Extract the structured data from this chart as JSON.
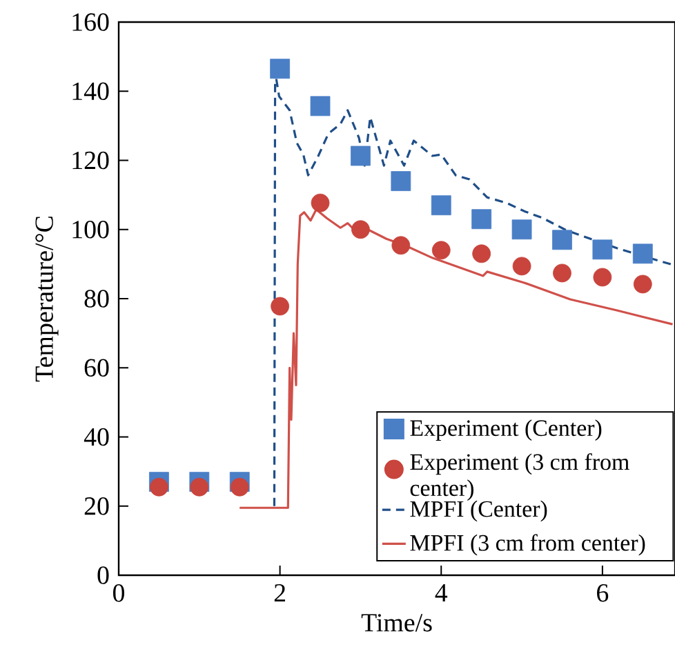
{
  "chart_data": {
    "type": "line",
    "xlabel": "Time/s",
    "ylabel": "Temperature/°C",
    "xlim": [
      0,
      6.9
    ],
    "ylim": [
      0,
      160
    ],
    "xticks": [
      0,
      2,
      4,
      6
    ],
    "yticks": [
      0,
      20,
      40,
      60,
      80,
      100,
      120,
      140,
      160
    ],
    "grid": false,
    "legend": "bottom right",
    "series": [
      {
        "name": "Experiment (Center)",
        "type": "scatter",
        "marker": "square",
        "color": "#4a7fc6",
        "x": [
          0.5,
          1,
          1.5,
          2,
          2.5,
          3,
          3.5,
          4,
          4.5,
          5,
          5.5,
          6,
          6.5
        ],
        "values": [
          27,
          27,
          27,
          146.5,
          135.7,
          121.3,
          114,
          107,
          103,
          100,
          97,
          94.2,
          93
        ]
      },
      {
        "name": "Experiment (3 cm from center)",
        "type": "scatter",
        "marker": "circle",
        "color": "#c8443c",
        "x": [
          0.5,
          1,
          1.5,
          2,
          2.5,
          3,
          3.5,
          4,
          4.5,
          5,
          5.5,
          6,
          6.5
        ],
        "values": [
          25.5,
          25.5,
          25.5,
          77.8,
          107.7,
          100,
          95.4,
          94,
          93,
          89.4,
          87.4,
          86.2,
          84.2
        ]
      },
      {
        "name": "MPFI (Center)",
        "type": "line",
        "marker": "none",
        "line_style": "dashed",
        "color": "#1f4e88",
        "x": [
          1.93,
          1.94,
          1.99,
          2.12,
          2.21,
          2.29,
          2.35,
          2.47,
          2.6,
          2.75,
          2.84,
          2.98,
          3.05,
          3.12,
          3.29,
          3.37,
          3.54,
          3.66,
          3.89,
          4.0,
          4.18,
          4.35,
          4.57,
          4.81,
          5.03,
          5.26,
          5.55,
          5.84,
          6.18,
          6.52,
          6.87
        ],
        "values": [
          20,
          145.6,
          138.5,
          134.5,
          125,
          121.7,
          115.7,
          121,
          127.7,
          130.5,
          134.5,
          126.5,
          118.5,
          132.5,
          118.5,
          125.7,
          118.5,
          125.7,
          121.3,
          121.7,
          115.7,
          114.5,
          109.3,
          107.7,
          105.3,
          103.3,
          99.8,
          97.4,
          94.6,
          92.2,
          89.8
        ]
      },
      {
        "name": "MPFI (3 cm from center)",
        "type": "line",
        "marker": "none",
        "line_style": "solid",
        "color": "#d0504a",
        "x": [
          1.5,
          2.1,
          2.12,
          2.14,
          2.17,
          2.2,
          2.22,
          2.25,
          2.3,
          2.38,
          2.45,
          2.58,
          2.75,
          2.84,
          2.98,
          3.09,
          3.32,
          3.55,
          3.89,
          4.52,
          4.57,
          5.03,
          5.6,
          6.18,
          6.52,
          6.87
        ],
        "values": [
          19.5,
          19.5,
          60,
          45,
          70,
          55,
          90,
          104,
          105,
          102.6,
          105.8,
          103.3,
          100.5,
          101.8,
          98.6,
          100,
          97.3,
          95.4,
          91.8,
          86.6,
          87.8,
          84.6,
          79.8,
          76.6,
          74.6,
          72.6
        ]
      }
    ]
  }
}
